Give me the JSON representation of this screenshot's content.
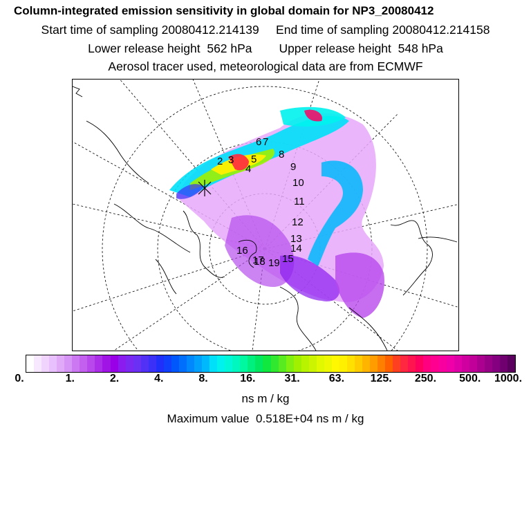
{
  "header": {
    "title": "Column-integrated emission sensitivity in global domain for NP3_20080412",
    "sampling": "Start time of sampling 20080412.214139     End time of sampling 20080412.214158",
    "release": "Lower release height  562 hPa        Upper release height  548 hPa",
    "tracer": "Aerosol tracer used, meteorological data are from ECMWF"
  },
  "map": {
    "track_labels": [
      "2",
      "3",
      "4",
      "5",
      "6",
      "7",
      "8",
      "9",
      "10",
      "11",
      "12",
      "13",
      "14",
      "15",
      "16",
      "17",
      "18",
      "19"
    ]
  },
  "colorbar": {
    "tick_labels": [
      "0.",
      "1.",
      "2.",
      "4.",
      "8.",
      "16.",
      "31.",
      "63.",
      "125.",
      "250.",
      "500.",
      "1000."
    ],
    "colors": [
      "#ffffff",
      "#f8e8ff",
      "#f0d4fe",
      "#e8c0fd",
      "#e0aaf9",
      "#d694f6",
      "#cc78f2",
      "#c460ef",
      "#b848ec",
      "#ad2ee8",
      "#a015e6",
      "#9a00e8",
      "#8a1cf0",
      "#7a28f2",
      "#6a30f4",
      "#5230f6",
      "#3a30f8",
      "#2030fa",
      "#1040fc",
      "#0058fc",
      "#0070fc",
      "#0088fc",
      "#00a0fc",
      "#00b8fc",
      "#00e0f8",
      "#00f2ee",
      "#00f8d8",
      "#00f8c0",
      "#00f8a0",
      "#00f080",
      "#00e860",
      "#10e840",
      "#30e830",
      "#58ec20",
      "#80f010",
      "#a0f000",
      "#b8f400",
      "#ccf400",
      "#e0f800",
      "#eef800",
      "#fff800",
      "#fff000",
      "#ffe000",
      "#ffcc00",
      "#ffb400",
      "#ff9c00",
      "#ff8000",
      "#ff6000",
      "#ff4020",
      "#ff2840",
      "#ff1450",
      "#ff0060",
      "#ff0080",
      "#ff0090",
      "#f800a0",
      "#f000a8",
      "#e000a8",
      "#d000a0",
      "#c00098",
      "#ac0090",
      "#980088",
      "#840080",
      "#700070",
      "#5c0060"
    ]
  },
  "units": "ns m / kg",
  "max_value": "Maximum value  0.518E+04 ns m / kg"
}
